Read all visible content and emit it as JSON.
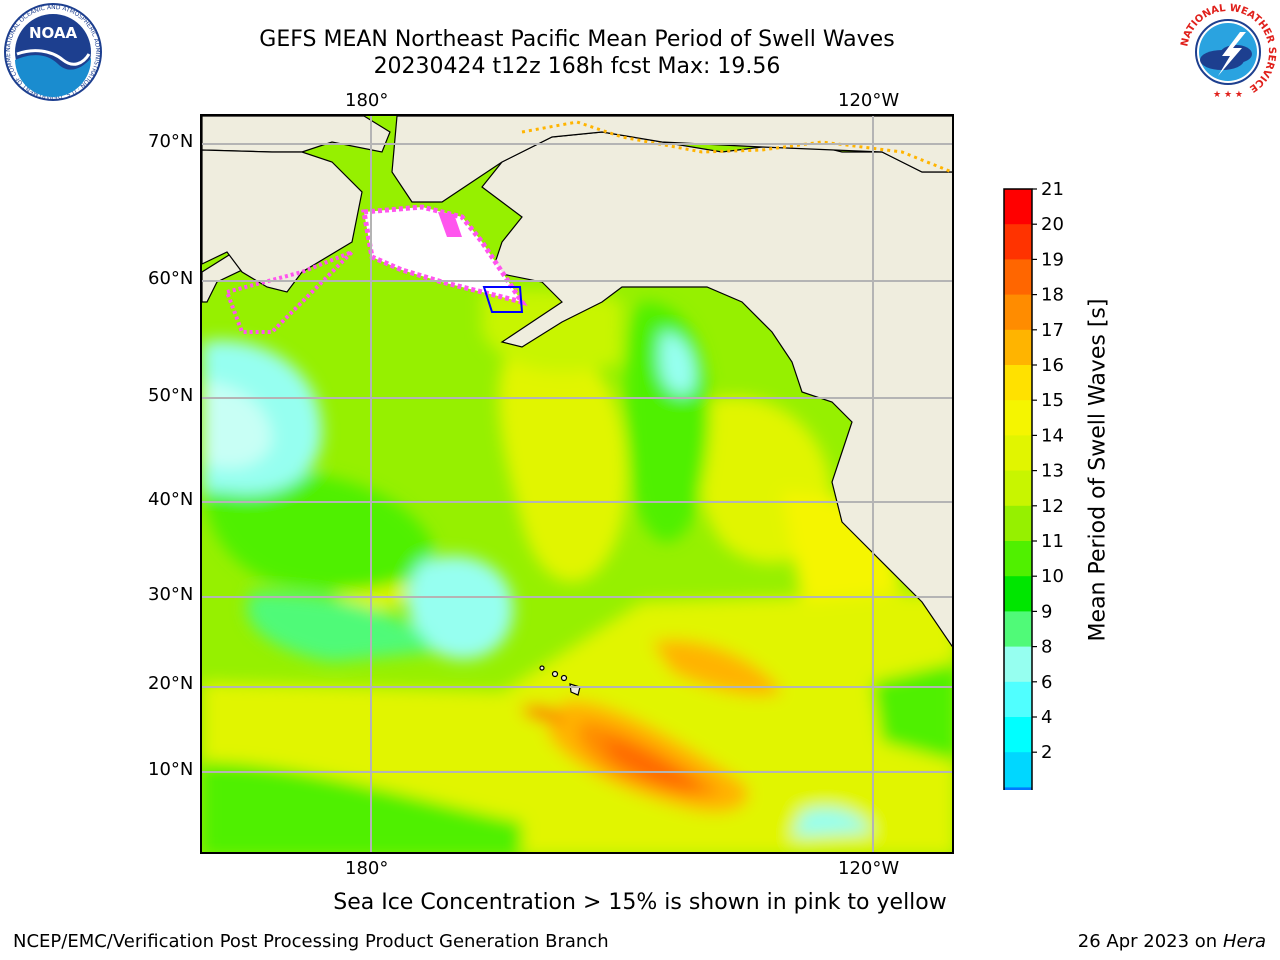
{
  "title": {
    "line1": "GEFS MEAN Northeast Pacific Mean Period of Swell Waves",
    "line2": "20230424 t12z 168h fcst   Max: 19.56"
  },
  "map": {
    "top_lon_labels": [
      "180°",
      "120°W"
    ],
    "bottom_lon_labels": [
      "180°",
      "120°W"
    ],
    "lat_labels": [
      "70°N",
      "60°N",
      "50°N",
      "40°N",
      "30°N",
      "20°N",
      "10°N"
    ]
  },
  "colorbar": {
    "label": "Mean Period of Swell Waves [s]",
    "ticks": [
      "21",
      "20",
      "19",
      "18",
      "17",
      "16",
      "15",
      "14",
      "13",
      "12",
      "11",
      "10",
      "9",
      "8",
      "6",
      "4",
      "2"
    ],
    "colors": [
      "#ff0000",
      "#ff3300",
      "#ff6600",
      "#ff8c00",
      "#ffb400",
      "#ffe100",
      "#f5f500",
      "#e1f500",
      "#c8f500",
      "#96f000",
      "#50f000",
      "#00e600",
      "#50fa78",
      "#96fff0",
      "#50ffff",
      "#00ffff",
      "#00d7ff",
      "#0078ff"
    ],
    "extend_color": "#0000ff"
  },
  "colors": {
    "land": "#efedde",
    "ice_white": "#ffffff",
    "ice_pink": "#ff55ee"
  },
  "footer": {
    "note": "Sea Ice Concentration > 15% is shown in pink to yellow",
    "credit": "NCEP/EMC/Verification Post Processing Product Generation Branch",
    "date": "26 Apr 2023 on ",
    "machine": "Hera"
  },
  "logos": {
    "noaa": {
      "text": "NOAA",
      "ring_text": "NATIONAL OCEANIC AND ATMOSPHERIC ADMINISTRATION · U.S. DEPARTMENT OF COMMERCE"
    },
    "nws": {
      "ring_text": "NATIONAL WEATHER SERVICE"
    }
  }
}
